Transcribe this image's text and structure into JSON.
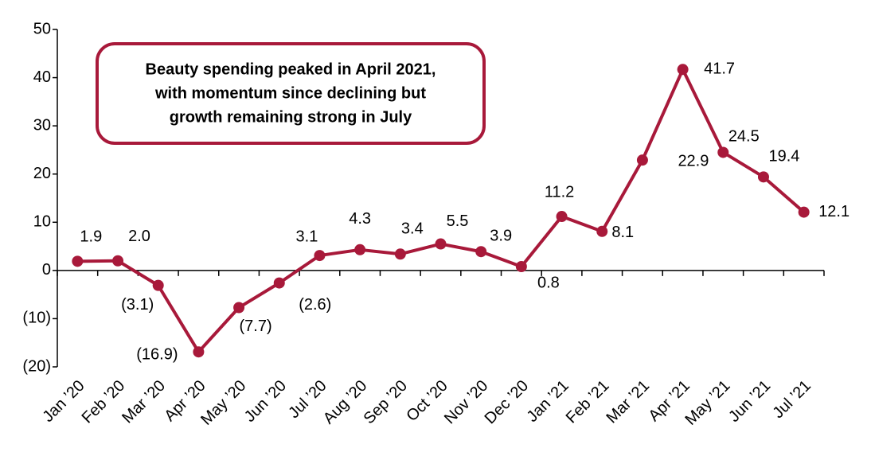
{
  "chart_data": {
    "type": "line",
    "annotation": [
      "Beauty spending peaked in April 2021,",
      "with momentum since declining but",
      "growth remaining strong in July"
    ],
    "categories": [
      "Jan ’20",
      "Feb ’20",
      "Mar ’20",
      "Apr ’20",
      "May ’20",
      "Jun ’20",
      "Jul ’20",
      "Aug ’20",
      "Sep ’20",
      "Oct ’20",
      "Nov ’20",
      "Dec ’20",
      "Jan ’21",
      "Feb ’21",
      "Mar ’21",
      "Apr ’21",
      "May ’21",
      "Jun ’21",
      "Jul ’21"
    ],
    "values": [
      1.9,
      2.0,
      -3.1,
      -16.9,
      -7.7,
      -2.6,
      3.1,
      4.3,
      3.4,
      5.5,
      3.9,
      0.8,
      11.2,
      8.1,
      22.9,
      41.7,
      24.5,
      19.4,
      12.1
    ],
    "value_labels": [
      "1.9",
      "2.0",
      "(3.1)",
      "(16.9)",
      "(7.7)",
      "(2.6)",
      "3.1",
      "4.3",
      "3.4",
      "5.5",
      "3.9",
      "0.8",
      "11.2",
      "8.1",
      "22.9",
      "41.7",
      "24.5",
      "19.4",
      "12.1"
    ],
    "color": "#a8193a",
    "ylim": [
      -20,
      50
    ],
    "yticks": [
      {
        "value": -20,
        "label": "(20)"
      },
      {
        "value": -10,
        "label": "(10)"
      },
      0,
      10,
      20,
      30,
      40,
      50
    ],
    "grid": false
  }
}
